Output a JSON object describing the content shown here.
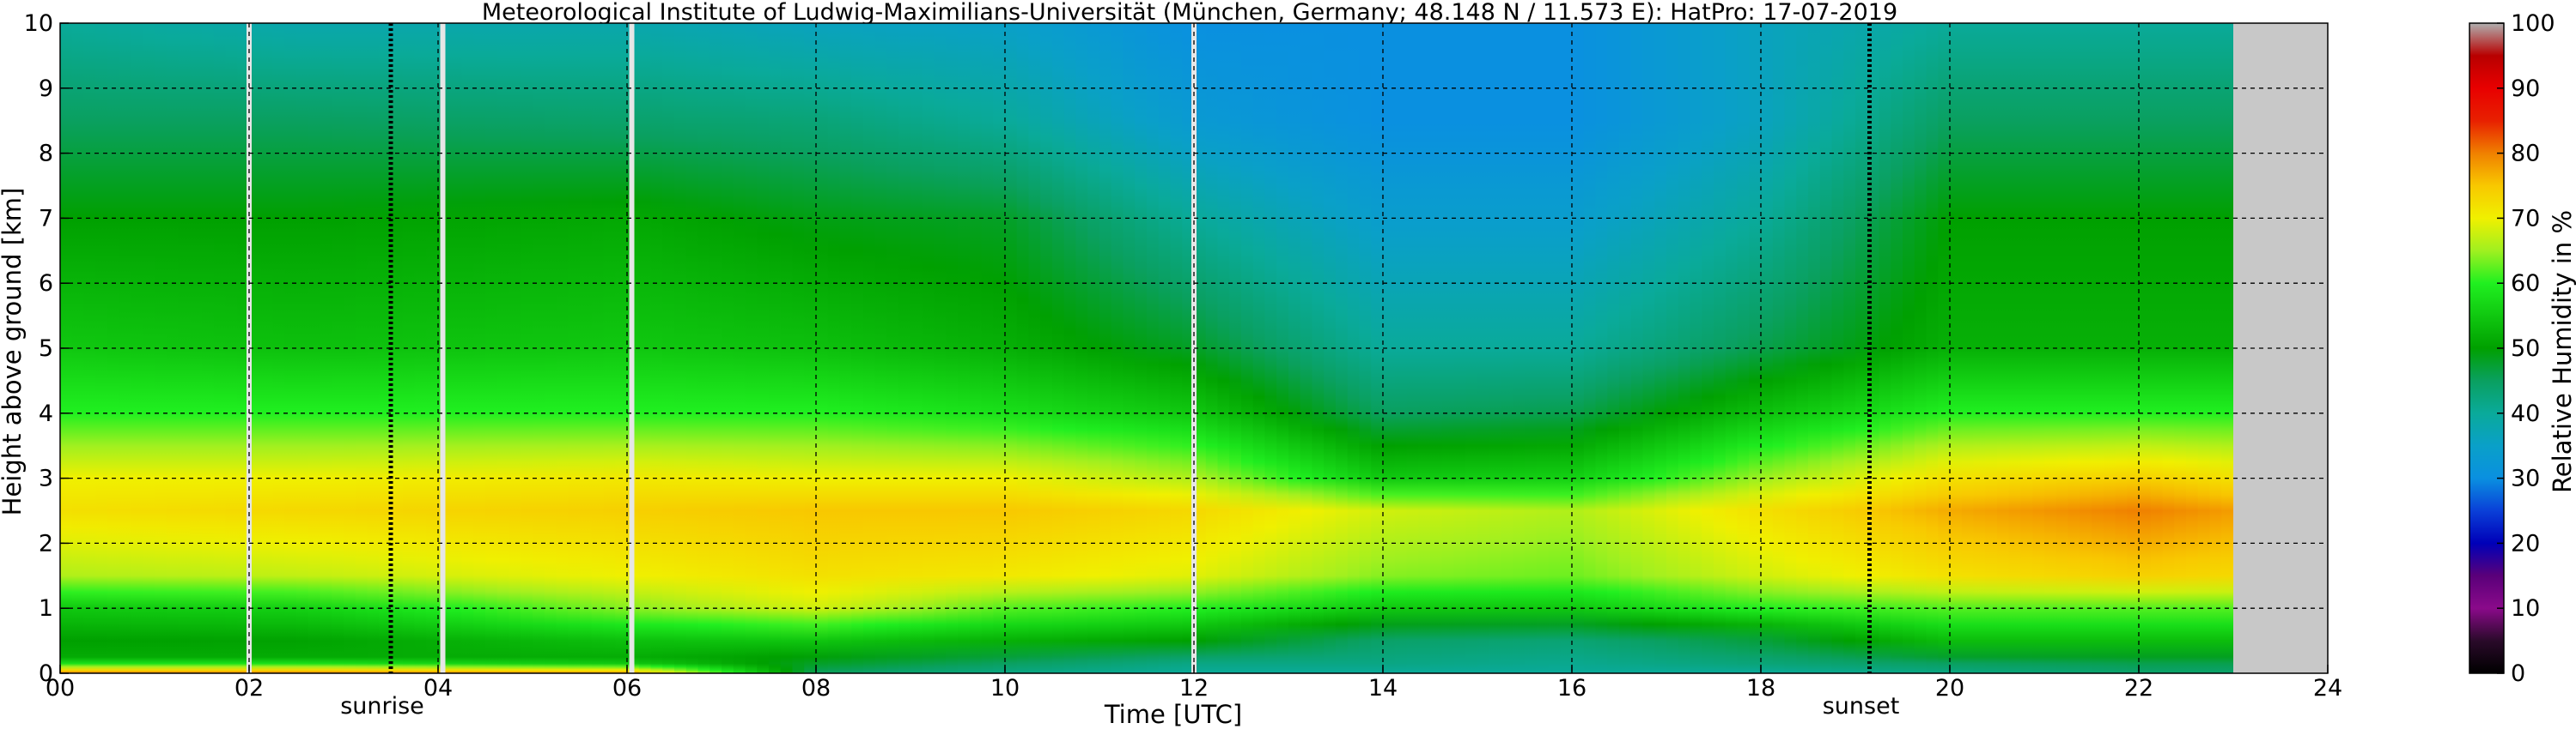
{
  "chart_data": {
    "type": "heatmap",
    "title": "Meteorological Institute of Ludwig-Maximilians-Universität (München, Germany; 48.148 N / 11.573 E):    HatPro: 17-07-2019",
    "xlabel": "Time [UTC]",
    "ylabel": "Height above ground [km]",
    "colorbar_label": "Relative Humidity in %",
    "xlim": [
      0,
      24
    ],
    "ylim": [
      0,
      10
    ],
    "x_ticks": [
      "00",
      "02",
      "04",
      "06",
      "08",
      "10",
      "12",
      "14",
      "16",
      "18",
      "20",
      "22",
      "24"
    ],
    "y_ticks": [
      "0",
      "1",
      "2",
      "3",
      "4",
      "5",
      "6",
      "7",
      "8",
      "9",
      "10"
    ],
    "colorbar_ticks": [
      "0",
      "10",
      "20",
      "30",
      "40",
      "50",
      "60",
      "70",
      "80",
      "90",
      "100"
    ],
    "colorbar_range": [
      0,
      100
    ],
    "grid": true,
    "data_end_hour": 23,
    "no_data_color": "#c8c8c8",
    "gaps_hours": [
      2.0,
      4.05,
      6.05,
      12.0
    ],
    "events": [
      {
        "label": "sunrise",
        "hour": 3.5
      },
      {
        "label": "sunset",
        "hour": 19.15
      }
    ],
    "colormap": [
      {
        "value": 0,
        "color": "#000000"
      },
      {
        "value": 5,
        "color": "#2a0a2a"
      },
      {
        "value": 10,
        "color": "#8a0a8a"
      },
      {
        "value": 15,
        "color": "#5a007a"
      },
      {
        "value": 20,
        "color": "#0000b8"
      },
      {
        "value": 25,
        "color": "#0a40d8"
      },
      {
        "value": 30,
        "color": "#0a90e0"
      },
      {
        "value": 35,
        "color": "#0aa0c8"
      },
      {
        "value": 40,
        "color": "#0aaa9a"
      },
      {
        "value": 45,
        "color": "#0aa060"
      },
      {
        "value": 50,
        "color": "#00a000"
      },
      {
        "value": 55,
        "color": "#10c810"
      },
      {
        "value": 60,
        "color": "#20f020"
      },
      {
        "value": 65,
        "color": "#a0f020"
      },
      {
        "value": 70,
        "color": "#f0f000"
      },
      {
        "value": 75,
        "color": "#f8c800"
      },
      {
        "value": 80,
        "color": "#f08000"
      },
      {
        "value": 85,
        "color": "#e82000"
      },
      {
        "value": 90,
        "color": "#e80000"
      },
      {
        "value": 95,
        "color": "#b80000"
      },
      {
        "value": 100,
        "color": "#b0b0b0"
      }
    ],
    "humidity_profiles": [
      {
        "hour": 0,
        "heights_km": [
          0,
          0.15,
          0.3,
          1.0,
          1.5,
          2.5,
          3.0,
          4.0,
          5.0,
          7.0,
          8.5,
          10
        ],
        "rh": [
          80,
          58,
          48,
          55,
          66,
          72,
          70,
          60,
          55,
          50,
          45,
          40
        ]
      },
      {
        "hour": 2.5,
        "heights_km": [
          0,
          0.15,
          0.3,
          1.0,
          1.5,
          2.5,
          3.0,
          4.0,
          5.0,
          7.0,
          8.5,
          10
        ],
        "rh": [
          80,
          58,
          48,
          56,
          67,
          73,
          70,
          60,
          54,
          50,
          45,
          38
        ]
      },
      {
        "hour": 6,
        "heights_km": [
          0,
          0.15,
          0.3,
          1.0,
          1.5,
          2.5,
          3.0,
          4.0,
          5.0,
          7.0,
          8.5,
          10
        ],
        "rh": [
          78,
          55,
          50,
          64,
          70,
          74,
          71,
          60,
          55,
          51,
          44,
          38
        ]
      },
      {
        "hour": 8,
        "heights_km": [
          0,
          0.15,
          0.4,
          1.0,
          1.5,
          2.5,
          3.0,
          4.0,
          5.0,
          7.0,
          8.5,
          10
        ],
        "rh": [
          45,
          48,
          52,
          68,
          72,
          75,
          70,
          60,
          54,
          49,
          43,
          36
        ]
      },
      {
        "hour": 10,
        "heights_km": [
          0,
          0.15,
          0.4,
          1.0,
          1.5,
          2.5,
          3.0,
          4.0,
          5.0,
          7.0,
          8.5,
          10
        ],
        "rh": [
          42,
          45,
          50,
          62,
          71,
          75,
          70,
          58,
          52,
          48,
          40,
          35
        ]
      },
      {
        "hour": 12,
        "heights_km": [
          0,
          0.15,
          0.4,
          1.0,
          1.5,
          2.5,
          3.0,
          4.0,
          5.0,
          7.0,
          8.5,
          10
        ],
        "rh": [
          40,
          42,
          48,
          60,
          69,
          73,
          66,
          55,
          48,
          40,
          33,
          30
        ]
      },
      {
        "hour": 14,
        "heights_km": [
          0,
          0.15,
          0.6,
          1.0,
          1.5,
          2.5,
          3.0,
          4.0,
          5.0,
          7.0,
          8.5,
          10
        ],
        "rh": [
          40,
          42,
          45,
          55,
          64,
          68,
          55,
          45,
          40,
          34,
          30,
          30
        ]
      },
      {
        "hour": 16,
        "heights_km": [
          0,
          0.15,
          0.6,
          1.0,
          1.5,
          2.5,
          3.0,
          4.0,
          5.0,
          7.0,
          8.5,
          10
        ],
        "rh": [
          40,
          41,
          44,
          55,
          63,
          66,
          56,
          46,
          40,
          34,
          30,
          30
        ]
      },
      {
        "hour": 18,
        "heights_km": [
          0,
          0.15,
          0.6,
          1.0,
          1.5,
          2.5,
          3.0,
          4.0,
          5.0,
          7.0,
          8.5,
          10
        ],
        "rh": [
          40,
          43,
          48,
          60,
          68,
          72,
          65,
          54,
          46,
          40,
          36,
          36
        ]
      },
      {
        "hour": 20,
        "heights_km": [
          0,
          0.15,
          0.4,
          1.0,
          1.5,
          2.5,
          3.0,
          4.0,
          5.0,
          7.0,
          8.5,
          10
        ],
        "rh": [
          42,
          45,
          52,
          62,
          72,
          77,
          72,
          60,
          52,
          50,
          45,
          40
        ]
      },
      {
        "hour": 22,
        "heights_km": [
          0,
          0.15,
          0.4,
          1.0,
          1.5,
          2.5,
          3.0,
          4.0,
          5.0,
          7.0,
          8.5,
          10
        ],
        "rh": [
          44,
          46,
          52,
          62,
          74,
          80,
          74,
          60,
          52,
          50,
          45,
          40
        ]
      },
      {
        "hour": 23,
        "heights_km": [
          0,
          0.15,
          0.4,
          1.0,
          1.5,
          2.5,
          3.0,
          4.0,
          5.0,
          7.0,
          8.5,
          10
        ],
        "rh": [
          44,
          46,
          52,
          62,
          73,
          78,
          72,
          60,
          52,
          50,
          45,
          40
        ]
      }
    ]
  }
}
